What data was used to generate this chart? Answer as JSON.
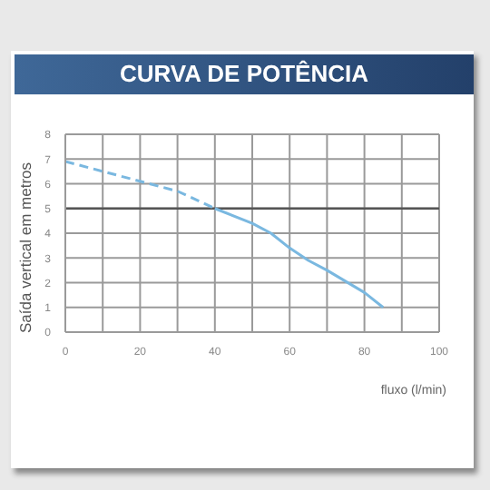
{
  "chart_data": {
    "type": "line",
    "title": "CURVA DE POTÊNCIA",
    "ylabel": "Saída vertical em metros",
    "xlabel": "fluxo (l/min)",
    "xlim": [
      0,
      100
    ],
    "xticks": [
      0,
      {
        "value": 10,
        "label": null
      },
      20,
      {
        "value": 30,
        "label": null
      },
      40,
      {
        "value": 50,
        "label": null
      },
      60,
      {
        "value": 70,
        "label": null
      },
      80,
      {
        "value": 90,
        "label": null
      },
      100
    ],
    "ylim": [
      0,
      8
    ],
    "yticks": [
      0,
      1,
      2,
      3,
      4,
      5,
      6,
      7,
      8
    ],
    "grid": true,
    "marker": "none",
    "ref_lines": [
      {
        "axis": "y",
        "value": 5,
        "color": "#555555"
      }
    ],
    "series": [
      {
        "color": "#7ab8e0",
        "line_style": "dashed",
        "x": [
          0,
          10,
          20,
          30,
          40
        ],
        "values": [
          6.9,
          6.5,
          6.1,
          5.7,
          5.0
        ]
      },
      {
        "color": "#7ab8e0",
        "line_style": "solid",
        "x": [
          40,
          50,
          55,
          60,
          65,
          70,
          80,
          85
        ],
        "values": [
          5.0,
          4.4,
          4.0,
          3.4,
          2.9,
          2.5,
          1.6,
          1.0
        ]
      }
    ]
  }
}
